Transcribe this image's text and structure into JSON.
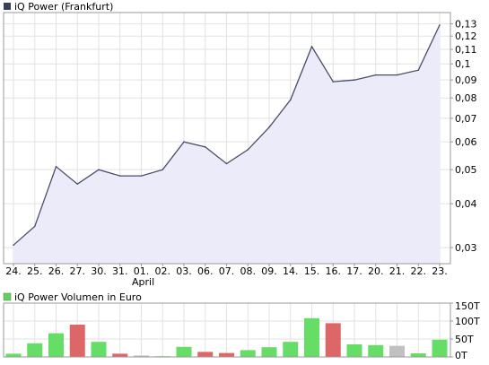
{
  "chart_data": [
    {
      "type": "area",
      "title": "iQ Power (Frankfurt)",
      "title_swatch_color": "#3c3f5a",
      "line_color": "#4a4d6a",
      "fill_color": "#ecebfa",
      "y_scale": "log",
      "ylim": [
        0.027,
        0.14
      ],
      "grid": true,
      "x_tick_labels": [
        "24.",
        "25.",
        "26.",
        "27.",
        "30.",
        "31.",
        "01.",
        "02.",
        "03.",
        "06.",
        "07.",
        "08.",
        "09.",
        "14.",
        "15.",
        "16.",
        "17.",
        "20.",
        "21.",
        "22.",
        "23."
      ],
      "month_label": "April",
      "month_label_index": 6,
      "y_tick_labels": [
        "0,13",
        "0,12",
        "0,11",
        "0,1",
        "0,09",
        "0,08",
        "0,07",
        "0,06",
        "0,05",
        "0,04",
        "0,03"
      ],
      "y_tick_values": [
        0.13,
        0.12,
        0.11,
        0.1,
        0.09,
        0.08,
        0.07,
        0.06,
        0.05,
        0.04,
        0.03
      ],
      "y_grid_values": [
        0.13,
        0.12,
        0.11,
        0.1,
        0.09,
        0.08,
        0.07,
        0.06,
        0.05,
        0.04,
        0.03
      ],
      "series": [
        {
          "values": [
            0.0305,
            0.0345,
            0.051,
            0.0455,
            0.05,
            0.048,
            0.048,
            0.05,
            0.06,
            0.058,
            0.052,
            0.057,
            0.066,
            0.079,
            0.112,
            0.089,
            0.09,
            0.093,
            0.093,
            0.096,
            0.129
          ]
        }
      ]
    },
    {
      "type": "bar",
      "title": "iQ Power Volumen in Euro",
      "title_swatch_color": "#66cc66",
      "ylim": [
        0,
        150000
      ],
      "y_tick_labels": [
        "150T",
        "100T",
        "50T",
        "0T"
      ],
      "y_tick_values": [
        150000,
        100000,
        50000,
        0
      ],
      "colors": {
        "up": "#66dd66",
        "down": "#dd6666",
        "neutral": "#c0c0c0"
      },
      "values": [
        9000,
        38000,
        66000,
        90000,
        42000,
        9000,
        4000,
        2000,
        28000,
        14000,
        11000,
        19000,
        27000,
        42000,
        108000,
        94000,
        35000,
        33000,
        31000,
        10000,
        48000
      ],
      "directions": [
        "up",
        "up",
        "up",
        "down",
        "up",
        "down",
        "neutral",
        "up",
        "up",
        "down",
        "down",
        "up",
        "up",
        "up",
        "up",
        "down",
        "up",
        "up",
        "neutral",
        "up",
        "up"
      ]
    }
  ]
}
